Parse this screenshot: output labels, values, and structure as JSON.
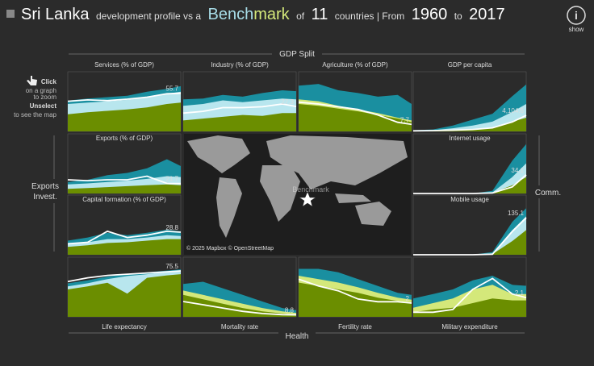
{
  "header": {
    "title": "Sri Lanka",
    "part1": "development profile vs a",
    "bench": "Bench",
    "mark": "mark",
    "part2": "of",
    "count": "11",
    "part3": "countries | From",
    "start": "1960",
    "to": "to",
    "end": "2017"
  },
  "info_button": "show",
  "sections": {
    "top": "GDP Split",
    "bottom": "Health",
    "left1": "Exports",
    "left2": "Invest.",
    "right": "Comm."
  },
  "hint": {
    "click": "Click",
    "zoom1": "on a graph",
    "zoom2": "to zoom",
    "unselect": "Unselect",
    "map": "to see the map"
  },
  "map": {
    "attribution": "© 2025 Mapbox © OpenStreetMap",
    "label": "Benchmark"
  },
  "chart_data": [
    {
      "type": "area",
      "title": "Services (% of GDP)",
      "x": [
        1960,
        1970,
        1980,
        1990,
        2000,
        2010,
        2017
      ],
      "xlim": [
        1960,
        2017
      ],
      "ylim": [
        0,
        80
      ],
      "series": [
        {
          "color": "#1a8fa0",
          "values": [
            45,
            48,
            50,
            52,
            58,
            62,
            66
          ]
        },
        {
          "color": "#b8e6ee",
          "values": [
            40,
            42,
            44,
            46,
            50,
            55,
            58
          ]
        },
        {
          "color": "#6b8e00",
          "values": [
            25,
            28,
            30,
            32,
            35,
            40,
            42
          ]
        },
        {
          "color": "#ffffff",
          "values": [
            44,
            46,
            45,
            47,
            50,
            55,
            55.7
          ]
        }
      ]
    },
    {
      "type": "area",
      "title": "Industry (% of GDP)",
      "x": [
        1960,
        1970,
        1980,
        1990,
        2000,
        2010,
        2017
      ],
      "xlim": [
        1960,
        2017
      ],
      "ylim": [
        0,
        60
      ],
      "series": [
        {
          "color": "#1a8fa0",
          "values": [
            35,
            36,
            40,
            38,
            42,
            45,
            44
          ]
        },
        {
          "color": "#b8e6ee",
          "values": [
            28,
            30,
            34,
            32,
            34,
            36,
            35
          ]
        },
        {
          "color": "#6b8e00",
          "values": [
            12,
            14,
            16,
            18,
            17,
            20,
            20
          ]
        },
        {
          "color": "#ffffff",
          "values": [
            20,
            22,
            26,
            26,
            27,
            30,
            27.3
          ]
        }
      ]
    },
    {
      "type": "area",
      "title": "Agriculture (% of GDP)",
      "x": [
        1960,
        1970,
        1980,
        1990,
        2000,
        2010,
        2017
      ],
      "xlim": [
        1960,
        2017
      ],
      "ylim": [
        0,
        60
      ],
      "series": [
        {
          "color": "#1a8fa0",
          "values": [
            50,
            52,
            45,
            42,
            38,
            40,
            30
          ]
        },
        {
          "color": "#d4e87a",
          "values": [
            35,
            33,
            28,
            24,
            20,
            15,
            12
          ]
        },
        {
          "color": "#6b8e00",
          "values": [
            30,
            28,
            25,
            22,
            18,
            14,
            10
          ]
        },
        {
          "color": "#ffffff",
          "values": [
            32,
            30,
            27,
            24,
            18,
            10,
            7.7
          ]
        }
      ]
    },
    {
      "type": "area",
      "title": "GDP per capita",
      "x": [
        1960,
        1970,
        1980,
        1990,
        2000,
        2010,
        2017
      ],
      "xlim": [
        1960,
        2017
      ],
      "ylim": [
        0,
        14000
      ],
      "series": [
        {
          "color": "#1a8fa0",
          "values": [
            300,
            500,
            1500,
            3000,
            4500,
            9000,
            12000
          ]
        },
        {
          "color": "#b8e6ee",
          "values": [
            200,
            300,
            800,
            1500,
            2500,
            5000,
            7000
          ]
        },
        {
          "color": "#6b8e00",
          "values": [
            100,
            150,
            300,
            600,
            1000,
            2500,
            3500
          ]
        },
        {
          "color": "#ffffff",
          "values": [
            150,
            200,
            300,
            500,
            900,
            2400,
            4104.6
          ],
          "value_labels": [
            null,
            null,
            null,
            null,
            null,
            null,
            "4,104.6"
          ]
        }
      ]
    },
    {
      "type": "area",
      "title": "Exports (% of GDP)",
      "x": [
        1960,
        1970,
        1980,
        1990,
        2000,
        2010,
        2017
      ],
      "xlim": [
        1960,
        2017
      ],
      "ylim": [
        0,
        120
      ],
      "series": [
        {
          "color": "#1a8fa0",
          "values": [
            25,
            30,
            40,
            45,
            55,
            75,
            60
          ]
        },
        {
          "color": "#b8e6ee",
          "values": [
            20,
            22,
            25,
            28,
            32,
            38,
            36
          ]
        },
        {
          "color": "#6b8e00",
          "values": [
            10,
            12,
            14,
            16,
            18,
            20,
            18
          ]
        },
        {
          "color": "#ffffff",
          "values": [
            30,
            28,
            30,
            30,
            38,
            22,
            21.7
          ]
        }
      ]
    },
    {
      "type": "area",
      "title": "Internet usage",
      "x": [
        1960,
        1970,
        1980,
        1990,
        2000,
        2010,
        2017
      ],
      "xlim": [
        1960,
        2017
      ],
      "ylim": [
        0,
        100
      ],
      "series": [
        {
          "color": "#1a8fa0",
          "values": [
            0,
            0,
            0,
            0,
            5,
            60,
            90
          ]
        },
        {
          "color": "#b8e6ee",
          "values": [
            0,
            0,
            0,
            0,
            2,
            30,
            55
          ]
        },
        {
          "color": "#6b8e00",
          "values": [
            0,
            0,
            0,
            0,
            1,
            15,
            30
          ]
        },
        {
          "color": "#ffffff",
          "values": [
            0,
            0,
            0,
            0,
            1,
            12,
            34.1
          ]
        }
      ]
    },
    {
      "type": "area",
      "title": "Capital formation (% of GDP)",
      "x": [
        1960,
        1970,
        1980,
        1990,
        2000,
        2010,
        2017
      ],
      "xlim": [
        1960,
        2017
      ],
      "ylim": [
        0,
        70
      ],
      "series": [
        {
          "color": "#1a8fa0",
          "values": [
            18,
            22,
            28,
            25,
            28,
            32,
            30
          ]
        },
        {
          "color": "#b8e6ee",
          "values": [
            14,
            16,
            20,
            20,
            22,
            25,
            24
          ]
        },
        {
          "color": "#6b8e00",
          "values": [
            10,
            12,
            15,
            16,
            18,
            20,
            20
          ]
        },
        {
          "color": "#ffffff",
          "values": [
            14,
            16,
            30,
            22,
            25,
            30,
            28.8
          ]
        }
      ]
    },
    {
      "type": "area",
      "title": "Mobile usage",
      "x": [
        1960,
        1970,
        1980,
        1990,
        2000,
        2010,
        2017
      ],
      "xlim": [
        1960,
        2017
      ],
      "ylim": [
        0,
        200
      ],
      "series": [
        {
          "color": "#1a8fa0",
          "values": [
            0,
            0,
            0,
            0,
            10,
            120,
            170
          ]
        },
        {
          "color": "#b8e6ee",
          "values": [
            0,
            0,
            0,
            0,
            5,
            90,
            140
          ]
        },
        {
          "color": "#6b8e00",
          "values": [
            0,
            0,
            0,
            0,
            2,
            50,
            90
          ]
        },
        {
          "color": "#ffffff",
          "values": [
            0,
            0,
            0,
            0,
            2,
            85,
            135.1
          ]
        }
      ]
    },
    {
      "type": "area",
      "title": "Life expectancy",
      "x": [
        1960,
        1970,
        1980,
        1990,
        2000,
        2010,
        2017
      ],
      "xlim": [
        1960,
        2017
      ],
      "ylim": [
        0,
        90
      ],
      "series": [
        {
          "color": "#1a8fa0",
          "values": [
            55,
            60,
            66,
            70,
            73,
            76,
            78
          ]
        },
        {
          "color": "#b8e6ee",
          "values": [
            50,
            55,
            62,
            67,
            70,
            74,
            76
          ]
        },
        {
          "color": "#6b8e00",
          "values": [
            45,
            50,
            56,
            38,
            64,
            68,
            70
          ]
        },
        {
          "color": "#ffffff",
          "values": [
            58,
            64,
            68,
            70,
            72,
            74,
            75.5
          ]
        }
      ]
    },
    {
      "type": "area",
      "title": "Mortality rate",
      "x": [
        1960,
        1970,
        1980,
        1990,
        2000,
        2010,
        2017
      ],
      "xlim": [
        1960,
        2017
      ],
      "ylim": [
        0,
        250
      ],
      "series": [
        {
          "color": "#1a8fa0",
          "values": [
            150,
            160,
            130,
            100,
            70,
            40,
            30
          ]
        },
        {
          "color": "#d4e87a",
          "values": [
            120,
            100,
            80,
            60,
            40,
            25,
            18
          ]
        },
        {
          "color": "#6b8e00",
          "values": [
            100,
            80,
            60,
            40,
            25,
            15,
            10
          ]
        },
        {
          "color": "#ffffff",
          "values": [
            70,
            55,
            40,
            25,
            15,
            10,
            8.8
          ]
        }
      ]
    },
    {
      "type": "area",
      "title": "Fertility rate",
      "x": [
        1960,
        1970,
        1980,
        1990,
        2000,
        2010,
        2017
      ],
      "xlim": [
        1960,
        2017
      ],
      "ylim": [
        0,
        8
      ],
      "series": [
        {
          "color": "#1a8fa0",
          "values": [
            7,
            7,
            6.5,
            5.5,
            4.5,
            3.5,
            3.2
          ]
        },
        {
          "color": "#d4e87a",
          "values": [
            6,
            5.5,
            5,
            4.3,
            3.5,
            2.8,
            2.5
          ]
        },
        {
          "color": "#6b8e00",
          "values": [
            5,
            4.5,
            4,
            3.5,
            2.8,
            2.3,
            2.1
          ]
        },
        {
          "color": "#ffffff",
          "values": [
            5.5,
            4.5,
            3.8,
            2.6,
            2.2,
            2.2,
            2.0
          ]
        }
      ]
    },
    {
      "type": "area",
      "title": "Military expenditure",
      "x": [
        1960,
        1970,
        1980,
        1990,
        2000,
        2010,
        2017
      ],
      "xlim": [
        1960,
        2017
      ],
      "ylim": [
        0,
        6
      ],
      "series": [
        {
          "color": "#1a8fa0",
          "values": [
            2,
            2.5,
            3,
            4,
            4.5,
            3.5,
            3.4
          ]
        },
        {
          "color": "#d4e87a",
          "values": [
            1,
            1.5,
            2,
            3,
            3.5,
            2.5,
            2.5
          ]
        },
        {
          "color": "#6b8e00",
          "values": [
            0.5,
            0.8,
            1,
            1.5,
            2,
            1.8,
            1.8
          ]
        },
        {
          "color": "#ffffff",
          "values": [
            0.5,
            0.5,
            0.8,
            3,
            4.2,
            2.5,
            2.1
          ]
        }
      ]
    }
  ]
}
